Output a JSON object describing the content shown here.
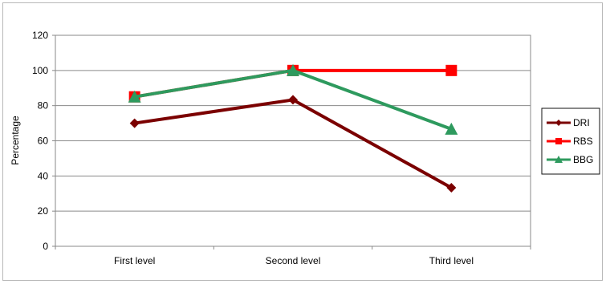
{
  "chart_data": {
    "type": "line",
    "categories": [
      "First level",
      "Second level",
      "Third level"
    ],
    "ylabel": "Percentage",
    "xlabel": "",
    "ylim": [
      0,
      120
    ],
    "yticks": [
      0,
      20,
      40,
      60,
      80,
      100,
      120
    ],
    "grid": true,
    "legend_position": "right",
    "series": [
      {
        "name": "DRI",
        "values": [
          70,
          83.3,
          33.3
        ],
        "color": "#7b0000",
        "marker": "diamond"
      },
      {
        "name": "RBS",
        "values": [
          85,
          100,
          100
        ],
        "color": "#ff0000",
        "marker": "square"
      },
      {
        "name": "BBG",
        "values": [
          85,
          100,
          66.7
        ],
        "color": "#2e9a5e",
        "marker": "triangle"
      }
    ]
  }
}
